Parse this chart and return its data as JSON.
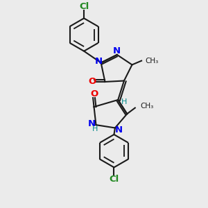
{
  "background_color": "#ebebeb",
  "bond_color": "#1a1a1a",
  "nitrogen_color": "#0000ee",
  "oxygen_color": "#ee0000",
  "chlorine_color": "#228822",
  "teal_color": "#008888",
  "line_width": 1.5,
  "figsize": [
    3.0,
    3.0
  ],
  "dpi": 100,
  "xlim": [
    0,
    10
  ],
  "ylim": [
    0,
    10
  ]
}
